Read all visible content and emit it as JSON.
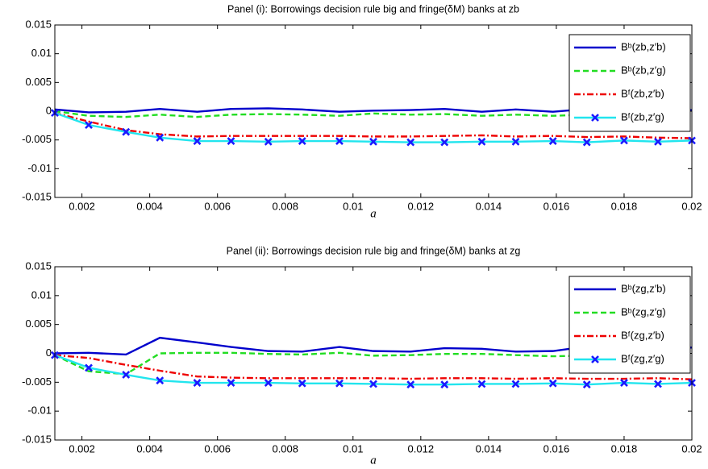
{
  "chart_data": [
    {
      "type": "line",
      "title": "Panel (i): Borrowings decision rule big and fringe(δM) banks at zb",
      "xlabel": "a",
      "x": [
        0.0012,
        0.0022,
        0.0033,
        0.0043,
        0.0054,
        0.0064,
        0.0075,
        0.0085,
        0.0096,
        0.0106,
        0.0117,
        0.0127,
        0.0138,
        0.0148,
        0.0159,
        0.0169,
        0.018,
        0.019,
        0.02
      ],
      "xlim": [
        0.0012,
        0.02
      ],
      "xticks": [
        0.002,
        0.004,
        0.006,
        0.008,
        0.01,
        0.012,
        0.014,
        0.016,
        0.018,
        0.02
      ],
      "ylim": [
        -0.015,
        0.015
      ],
      "yticks": [
        -0.015,
        -0.01,
        -0.005,
        0,
        0.005,
        0.01,
        0.015
      ],
      "grid": false,
      "legend": "upper right",
      "series": [
        {
          "name": "Bᵇ(zb,z′b)",
          "color": "#0000cc",
          "linestyle": "solid",
          "marker": "none",
          "values": [
            0.0003,
            -0.0002,
            -0.0001,
            0.0004,
            -0.0001,
            0.0004,
            0.0005,
            0.0003,
            -0.0001,
            0.0001,
            0.0002,
            0.0004,
            -0.0001,
            0.0003,
            -0.0001,
            0.0004,
            0.0003,
            0.0001,
            0.0002
          ]
        },
        {
          "name": "Bᵇ(zb,z′g)",
          "color": "#22dd22",
          "linestyle": "dashed",
          "marker": "none",
          "values": [
            0,
            -0.0008,
            -0.001,
            -0.0006,
            -0.001,
            -0.0006,
            -0.0005,
            -0.0006,
            -0.0008,
            -0.0004,
            -0.0006,
            -0.0005,
            -0.0008,
            -0.0006,
            -0.0008,
            -0.0006,
            -0.0007,
            -0.0008,
            -0.0008
          ]
        },
        {
          "name": "Bᶠ(zb,z′b)",
          "color": "#ee0000",
          "linestyle": "dashdot",
          "marker": "none",
          "values": [
            -0.0003,
            -0.0018,
            -0.0033,
            -0.004,
            -0.0044,
            -0.0043,
            -0.0043,
            -0.0043,
            -0.0043,
            -0.0044,
            -0.0044,
            -0.0043,
            -0.0042,
            -0.0044,
            -0.0043,
            -0.0045,
            -0.0044,
            -0.0046,
            -0.0047
          ]
        },
        {
          "name": "Bᶠ(zb,z′g)",
          "color": "#22e5ee",
          "linestyle": "solid",
          "marker": "x",
          "marker_color": "#1a1aff",
          "values": [
            -0.0003,
            -0.0024,
            -0.0036,
            -0.0046,
            -0.0052,
            -0.0052,
            -0.0053,
            -0.0052,
            -0.0052,
            -0.0053,
            -0.0054,
            -0.0054,
            -0.0053,
            -0.0053,
            -0.0052,
            -0.0054,
            -0.0051,
            -0.0053,
            -0.0051
          ]
        }
      ]
    },
    {
      "type": "line",
      "title": "Panel (ii): Borrowings decision rule big and fringe(δM) banks at zg",
      "xlabel": "a",
      "x": [
        0.0012,
        0.0022,
        0.0033,
        0.0043,
        0.0054,
        0.0064,
        0.0075,
        0.0085,
        0.0096,
        0.0106,
        0.0117,
        0.0127,
        0.0138,
        0.0148,
        0.0159,
        0.0169,
        0.018,
        0.019,
        0.02
      ],
      "xlim": [
        0.0012,
        0.02
      ],
      "xticks": [
        0.002,
        0.004,
        0.006,
        0.008,
        0.01,
        0.012,
        0.014,
        0.016,
        0.018,
        0.02
      ],
      "ylim": [
        -0.015,
        0.015
      ],
      "yticks": [
        -0.015,
        -0.01,
        -0.005,
        0,
        0.005,
        0.01,
        0.015
      ],
      "grid": false,
      "legend": "upper right",
      "series": [
        {
          "name": "Bᵇ(zg,z′b)",
          "color": "#0000cc",
          "linestyle": "solid",
          "marker": "none",
          "values": [
            0,
            0.0001,
            -0.0002,
            0.0027,
            0.0019,
            0.0011,
            0.0004,
            0.0003,
            0.0011,
            0.0004,
            0.0003,
            0.0009,
            0.0008,
            0.0003,
            0.0004,
            0.0012,
            0.0011,
            0.001,
            0.001
          ]
        },
        {
          "name": "Bᵇ(zg,z′g)",
          "color": "#22dd22",
          "linestyle": "dashed",
          "marker": "none",
          "values": [
            -0.0003,
            -0.0031,
            -0.0036,
            0,
            0.0001,
            0.0001,
            -0.0001,
            -0.0002,
            0.0001,
            -0.0004,
            -0.0003,
            -0.0001,
            -0.0001,
            -0.0003,
            -0.0005,
            -0.0004,
            -0.0003,
            -0.0001,
            0
          ]
        },
        {
          "name": "Bᶠ(zg,z′b)",
          "color": "#ee0000",
          "linestyle": "dashdot",
          "marker": "none",
          "values": [
            -0.0003,
            -0.0008,
            -0.002,
            -0.003,
            -0.004,
            -0.0042,
            -0.0043,
            -0.0043,
            -0.0043,
            -0.0043,
            -0.0044,
            -0.0043,
            -0.0043,
            -0.0044,
            -0.0043,
            -0.0044,
            -0.0044,
            -0.0043,
            -0.0045
          ]
        },
        {
          "name": "Bᶠ(zg,z′g)",
          "color": "#22e5ee",
          "linestyle": "solid",
          "marker": "x",
          "marker_color": "#1a1aff",
          "values": [
            -0.0003,
            -0.0025,
            -0.0037,
            -0.0047,
            -0.0051,
            -0.0051,
            -0.0051,
            -0.0052,
            -0.0052,
            -0.0053,
            -0.0054,
            -0.0054,
            -0.0053,
            -0.0053,
            -0.0052,
            -0.0054,
            -0.0051,
            -0.0053,
            -0.0051
          ]
        }
      ]
    }
  ]
}
